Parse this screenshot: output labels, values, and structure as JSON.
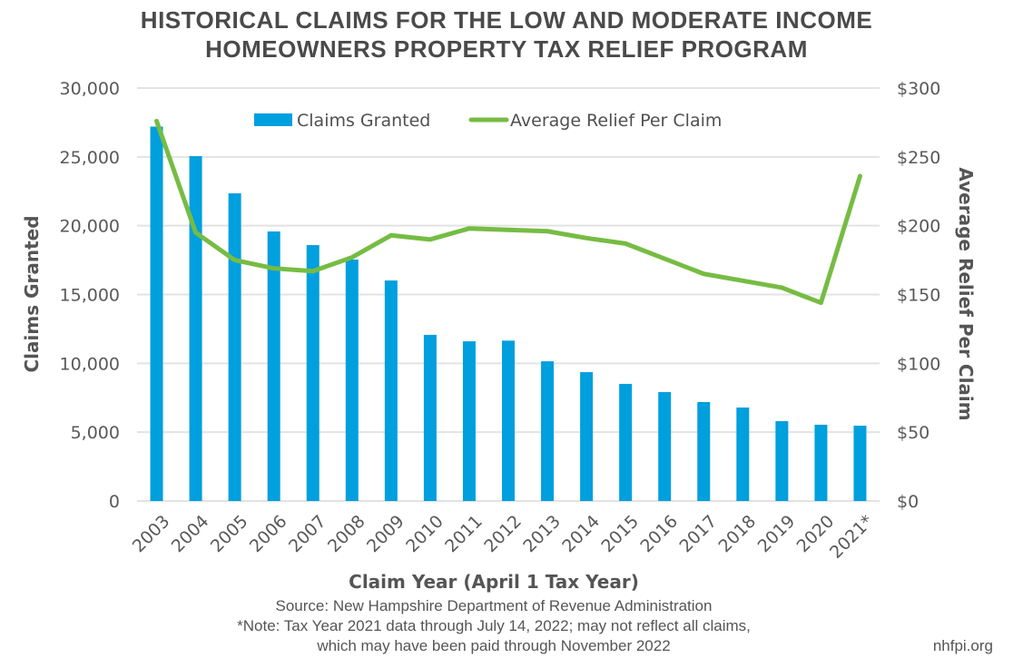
{
  "chart_data": {
    "type": "bar+line",
    "title_lines": [
      "HISTORICAL CLAIMS FOR THE LOW AND MODERATE INCOME",
      "HOMEOWNERS PROPERTY TAX RELIEF PROGRAM"
    ],
    "xlabel": "Claim Year (April 1 Tax Year)",
    "ylabel": "Claims Granted",
    "y2label": "Average Relief Per Claim",
    "categories": [
      "2003",
      "2004",
      "2005",
      "2006",
      "2007",
      "2008",
      "2009",
      "2010",
      "2011",
      "2012",
      "2013",
      "2014",
      "2015",
      "2016",
      "2017",
      "2018",
      "2019",
      "2020",
      "2021*"
    ],
    "ylim": [
      0,
      30000
    ],
    "y2lim": [
      0,
      300
    ],
    "yticks": [
      0,
      5000,
      10000,
      15000,
      20000,
      25000,
      30000
    ],
    "ytick_labels": [
      "0",
      "5,000",
      "10,000",
      "15,000",
      "20,000",
      "25,000",
      "30,000"
    ],
    "y2ticks": [
      0,
      50,
      100,
      150,
      200,
      250,
      300
    ],
    "y2tick_labels": [
      "$0",
      "$50",
      "$100",
      "$150",
      "$200",
      "$250",
      "$300"
    ],
    "grid": true,
    "legend_position": "top-center",
    "series": [
      {
        "name": "Claims Granted",
        "type": "bar",
        "axis": "left",
        "color": "#009fde",
        "values": [
          27200,
          25050,
          22350,
          19580,
          18590,
          17540,
          16020,
          12070,
          11600,
          11650,
          10150,
          9360,
          8510,
          7910,
          7190,
          6790,
          5800,
          5540,
          5470
        ]
      },
      {
        "name": "Average Relief Per Claim",
        "type": "line",
        "axis": "right",
        "color": "#76bc43",
        "values": [
          276,
          195,
          175,
          169,
          167,
          177,
          193,
          190,
          198,
          197,
          196,
          191,
          187,
          176,
          165,
          160,
          155,
          144,
          236
        ]
      }
    ]
  },
  "footer": {
    "source": "Source: New Hampshire Department of Revenue Administration",
    "note_line1": "*Note: Tax Year 2021 data through July 14, 2022; may not reflect all claims,",
    "note_line2": "which may have been paid through November 2022",
    "brand": "nhfpi.org"
  }
}
